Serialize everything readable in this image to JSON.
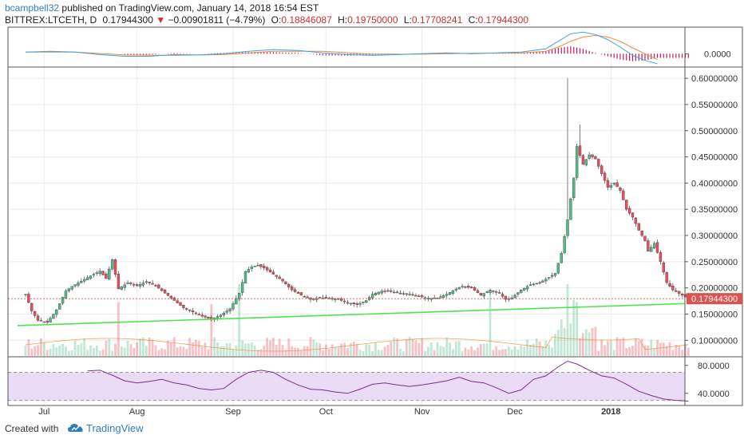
{
  "header": {
    "author": "bcampbell32",
    "published": "published on TradingView.com, January 14, 2018 16:54 EST",
    "symbol": "BITTREX:LTCETH, D",
    "last": "0.17944300",
    "change_arrow": "▼",
    "change": "−0.00901811 (−4.79%)",
    "o_label": "O:",
    "o_value": "0.18846087",
    "h_label": "H:",
    "h_value": "0.19750000",
    "l_label": "L:",
    "l_value": "0.17708241",
    "c_label": "C:",
    "c_value": "0.17944300"
  },
  "footer": {
    "created_with": "Created with",
    "brand": "TradingView",
    "logo_icon": "tradingview-cloud-icon"
  },
  "colors": {
    "up": "#53b987",
    "down": "#eb4d5c",
    "trendline": "#4fe34f",
    "price_badge": "#d9534f",
    "macd_line": "#3ba3e8",
    "signal_line": "#f08a33",
    "histogram": "#c2185b",
    "rsi_line": "#7b2d8f",
    "rsi_band": "#eadcf7"
  },
  "chart_data": [
    {
      "type": "macd",
      "panel": "top indicator",
      "y_ticks": [
        "0.0000"
      ],
      "macd": [
        [
          0,
          0.004
        ],
        [
          8,
          0.006
        ],
        [
          16,
          0.004
        ],
        [
          24,
          -0.002
        ],
        [
          32,
          -0.006
        ],
        [
          40,
          -0.006
        ],
        [
          48,
          -0.002
        ],
        [
          56,
          -0.003
        ],
        [
          64,
          0.0
        ],
        [
          72,
          0.006
        ],
        [
          80,
          0.01
        ],
        [
          88,
          0.008
        ],
        [
          96,
          0.002
        ],
        [
          104,
          -0.002
        ],
        [
          112,
          -0.004
        ],
        [
          120,
          -0.002
        ],
        [
          128,
          0.0
        ],
        [
          136,
          0.002
        ],
        [
          144,
          0.0
        ],
        [
          152,
          0.002
        ],
        [
          160,
          0.004
        ],
        [
          168,
          0.012
        ],
        [
          172,
          0.03
        ],
        [
          176,
          0.048
        ],
        [
          180,
          0.052
        ],
        [
          184,
          0.046
        ],
        [
          188,
          0.034
        ],
        [
          192,
          0.016
        ],
        [
          196,
          -0.004
        ],
        [
          200,
          -0.016
        ],
        [
          204,
          -0.024
        ]
      ],
      "signal": [
        [
          0,
          0.004
        ],
        [
          16,
          0.004
        ],
        [
          32,
          -0.003
        ],
        [
          48,
          -0.004
        ],
        [
          64,
          -0.002
        ],
        [
          80,
          0.006
        ],
        [
          96,
          0.006
        ],
        [
          112,
          -0.001
        ],
        [
          128,
          -0.001
        ],
        [
          144,
          0.001
        ],
        [
          160,
          0.002
        ],
        [
          168,
          0.006
        ],
        [
          172,
          0.016
        ],
        [
          176,
          0.03
        ],
        [
          180,
          0.04
        ],
        [
          184,
          0.044
        ],
        [
          188,
          0.04
        ],
        [
          192,
          0.03
        ],
        [
          196,
          0.014
        ],
        [
          200,
          0.0
        ],
        [
          204,
          -0.014
        ]
      ],
      "histogram_range": [
        -0.016,
        0.012
      ]
    },
    {
      "type": "candlestick",
      "panel": "main price",
      "symbol": "BITTREX:LTCETH",
      "interval": "D",
      "ylim": [
        0.07,
        0.62
      ],
      "y_ticks": [
        "0.60000000",
        "0.55000000",
        "0.50000000",
        "0.45000000",
        "0.40000000",
        "0.35000000",
        "0.30000000",
        "0.25000000",
        "0.20000000",
        "0.15000000",
        "0.10000000"
      ],
      "x_ticks": [
        "Jul",
        "Aug",
        "Sep",
        "Oct",
        "Nov",
        "Dec",
        "2018"
      ],
      "x_tick_days": [
        6,
        36,
        67,
        97,
        128,
        158,
        189
      ],
      "last_price": "0.17944300",
      "close_path": [
        [
          0,
          0.188
        ],
        [
          2,
          0.156
        ],
        [
          4,
          0.138
        ],
        [
          7,
          0.134
        ],
        [
          10,
          0.158
        ],
        [
          13,
          0.194
        ],
        [
          15,
          0.203
        ],
        [
          18,
          0.213
        ],
        [
          21,
          0.223
        ],
        [
          24,
          0.232
        ],
        [
          26,
          0.218
        ],
        [
          28,
          0.254
        ],
        [
          30,
          0.198
        ],
        [
          33,
          0.21
        ],
        [
          36,
          0.204
        ],
        [
          39,
          0.212
        ],
        [
          42,
          0.204
        ],
        [
          45,
          0.19
        ],
        [
          48,
          0.176
        ],
        [
          51,
          0.162
        ],
        [
          54,
          0.154
        ],
        [
          57,
          0.146
        ],
        [
          60,
          0.14
        ],
        [
          63,
          0.148
        ],
        [
          66,
          0.16
        ],
        [
          69,
          0.19
        ],
        [
          71,
          0.231
        ],
        [
          73,
          0.24
        ],
        [
          75,
          0.243
        ],
        [
          77,
          0.238
        ],
        [
          80,
          0.226
        ],
        [
          83,
          0.213
        ],
        [
          86,
          0.196
        ],
        [
          89,
          0.186
        ],
        [
          92,
          0.178
        ],
        [
          95,
          0.181
        ],
        [
          98,
          0.18
        ],
        [
          101,
          0.178
        ],
        [
          104,
          0.172
        ],
        [
          107,
          0.168
        ],
        [
          110,
          0.176
        ],
        [
          112,
          0.188
        ],
        [
          115,
          0.194
        ],
        [
          118,
          0.193
        ],
        [
          121,
          0.19
        ],
        [
          124,
          0.188
        ],
        [
          127,
          0.184
        ],
        [
          130,
          0.18
        ],
        [
          133,
          0.181
        ],
        [
          136,
          0.188
        ],
        [
          139,
          0.198
        ],
        [
          141,
          0.203
        ],
        [
          144,
          0.2
        ],
        [
          147,
          0.186
        ],
        [
          150,
          0.196
        ],
        [
          153,
          0.19
        ],
        [
          155,
          0.178
        ],
        [
          157,
          0.181
        ],
        [
          160,
          0.196
        ],
        [
          163,
          0.206
        ],
        [
          166,
          0.21
        ],
        [
          169,
          0.22
        ],
        [
          171,
          0.228
        ],
        [
          173,
          0.266
        ],
        [
          175,
          0.33
        ],
        [
          177,
          0.41
        ],
        [
          178,
          0.47
        ],
        [
          180,
          0.436
        ],
        [
          182,
          0.454
        ],
        [
          184,
          0.446
        ],
        [
          186,
          0.418
        ],
        [
          188,
          0.392
        ],
        [
          190,
          0.4
        ],
        [
          192,
          0.386
        ],
        [
          194,
          0.35
        ],
        [
          196,
          0.335
        ],
        [
          198,
          0.31
        ],
        [
          200,
          0.29
        ],
        [
          201,
          0.27
        ],
        [
          203,
          0.285
        ],
        [
          205,
          0.25
        ],
        [
          207,
          0.21
        ],
        [
          209,
          0.196
        ],
        [
          212,
          0.186
        ],
        [
          214,
          0.179
        ]
      ],
      "spike_high": [
        [
          175,
          0.6
        ],
        [
          179,
          0.512
        ]
      ],
      "trendline": [
        [
          0,
          0.128
        ],
        [
          219,
          0.17
        ]
      ]
    },
    {
      "type": "bar",
      "panel": "volume",
      "description_values": "relative volume, tallest bars near days 69, 150, 175-178"
    },
    {
      "type": "line",
      "panel": "RSI",
      "y_ticks": [
        "80.0000",
        "40.0000"
      ],
      "ylim": [
        25,
        90
      ],
      "band": [
        30,
        70
      ],
      "values": [
        [
          20,
          72
        ],
        [
          24,
          73
        ],
        [
          28,
          66
        ],
        [
          32,
          58
        ],
        [
          36,
          55
        ],
        [
          40,
          57
        ],
        [
          44,
          60
        ],
        [
          48,
          55
        ],
        [
          52,
          52
        ],
        [
          56,
          47
        ],
        [
          60,
          45
        ],
        [
          64,
          47
        ],
        [
          68,
          60
        ],
        [
          72,
          70
        ],
        [
          76,
          73
        ],
        [
          80,
          70
        ],
        [
          84,
          60
        ],
        [
          88,
          52
        ],
        [
          92,
          46
        ],
        [
          96,
          45
        ],
        [
          100,
          42
        ],
        [
          104,
          40
        ],
        [
          108,
          46
        ],
        [
          112,
          53
        ],
        [
          116,
          55
        ],
        [
          120,
          52
        ],
        [
          124,
          50
        ],
        [
          128,
          52
        ],
        [
          132,
          55
        ],
        [
          136,
          58
        ],
        [
          140,
          63
        ],
        [
          144,
          57
        ],
        [
          148,
          55
        ],
        [
          152,
          48
        ],
        [
          156,
          40
        ],
        [
          160,
          45
        ],
        [
          164,
          60
        ],
        [
          168,
          65
        ],
        [
          172,
          78
        ],
        [
          175,
          86
        ],
        [
          178,
          82
        ],
        [
          182,
          73
        ],
        [
          186,
          65
        ],
        [
          190,
          62
        ],
        [
          194,
          53
        ],
        [
          198,
          43
        ],
        [
          202,
          37
        ],
        [
          206,
          32
        ],
        [
          210,
          30
        ],
        [
          214,
          29
        ]
      ]
    }
  ]
}
